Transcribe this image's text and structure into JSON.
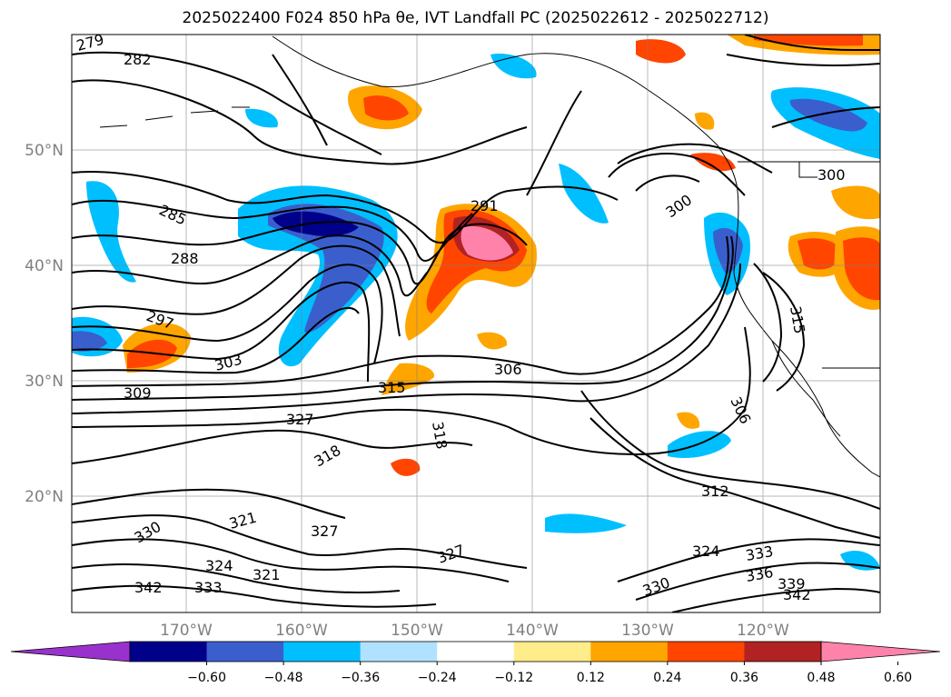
{
  "title": "2025022400 F024 850 hPa θe, IVT Landfall PC (2025022612 - 2025022712)",
  "lat_labels": [
    "50°N",
    "40°N",
    "30°N",
    "20°N"
  ],
  "lon_labels": [
    "170°W",
    "160°W",
    "150°W",
    "140°W",
    "130°W",
    "120°W"
  ],
  "contour_labels": [
    "279",
    "282",
    "285",
    "288",
    "291",
    "297",
    "300",
    "303",
    "306",
    "309",
    "312",
    "315",
    "318",
    "321",
    "324",
    "327",
    "330",
    "333",
    "336",
    "339",
    "342"
  ],
  "colorbar": {
    "colors": [
      "#9932cc",
      "#00008b",
      "#3a5fcd",
      "#00bfff",
      "#b0e2ff",
      "#ffffff",
      "#ffec8b",
      "#ffa500",
      "#ff4500",
      "#b22222",
      "#ff82ab"
    ],
    "tick_labels": [
      "−0.60",
      "−0.48",
      "−0.36",
      "−0.24",
      "−0.12",
      "0.12",
      "0.24",
      "0.36",
      "0.48",
      "0.60"
    ]
  }
}
